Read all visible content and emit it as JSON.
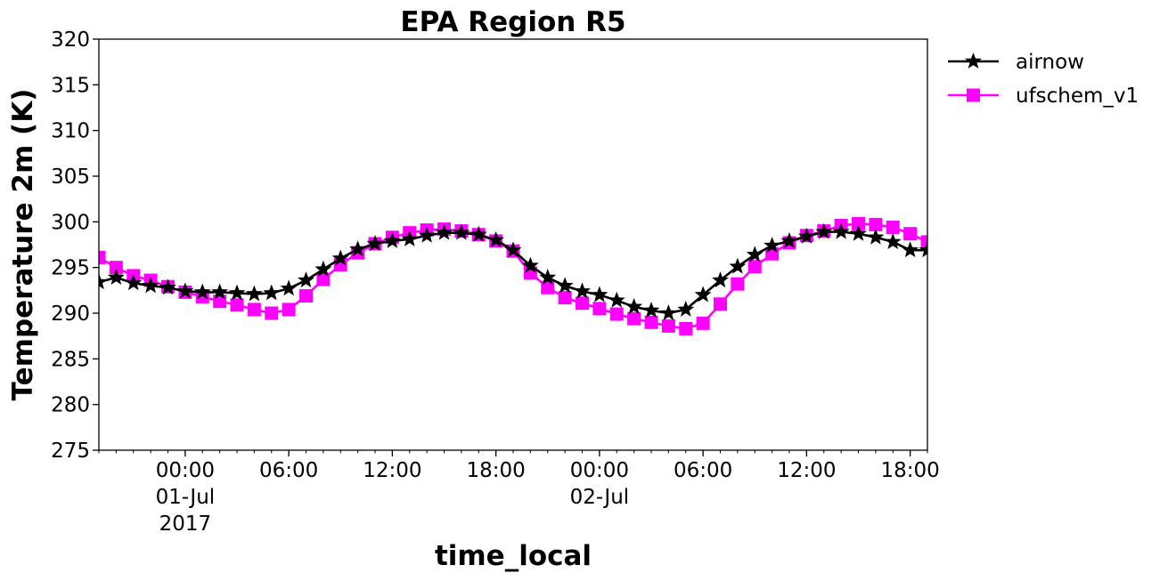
{
  "chart_data": {
    "type": "line",
    "title": "EPA Region R5",
    "xlabel": "time_local",
    "ylabel": "Temperature 2m (K)",
    "ylim": [
      275,
      320
    ],
    "xlim": [
      "2017-06-30T19:00",
      "2017-07-02T19:00"
    ],
    "yticks": [
      "275",
      "280",
      "285",
      "290",
      "295",
      "300",
      "305",
      "310",
      "315",
      "320"
    ],
    "xticks": [
      {
        "time": "2017-07-01T00:00",
        "lines": [
          "00:00",
          "01-Jul",
          "2017"
        ]
      },
      {
        "time": "2017-07-01T06:00",
        "lines": [
          "06:00"
        ]
      },
      {
        "time": "2017-07-01T12:00",
        "lines": [
          "12:00"
        ]
      },
      {
        "time": "2017-07-01T18:00",
        "lines": [
          "18:00"
        ]
      },
      {
        "time": "2017-07-02T00:00",
        "lines": [
          "00:00",
          "02-Jul"
        ]
      },
      {
        "time": "2017-07-02T06:00",
        "lines": [
          "06:00"
        ]
      },
      {
        "time": "2017-07-02T12:00",
        "lines": [
          "12:00"
        ]
      },
      {
        "time": "2017-07-02T18:00",
        "lines": [
          "18:00"
        ]
      }
    ],
    "grid": false,
    "legend_position": "outside-top-right",
    "x": [
      "2017-06-30T19:00",
      "2017-06-30T20:00",
      "2017-06-30T21:00",
      "2017-06-30T22:00",
      "2017-06-30T23:00",
      "2017-07-01T00:00",
      "2017-07-01T01:00",
      "2017-07-01T02:00",
      "2017-07-01T03:00",
      "2017-07-01T04:00",
      "2017-07-01T05:00",
      "2017-07-01T06:00",
      "2017-07-01T07:00",
      "2017-07-01T08:00",
      "2017-07-01T09:00",
      "2017-07-01T10:00",
      "2017-07-01T11:00",
      "2017-07-01T12:00",
      "2017-07-01T13:00",
      "2017-07-01T14:00",
      "2017-07-01T15:00",
      "2017-07-01T16:00",
      "2017-07-01T17:00",
      "2017-07-01T18:00",
      "2017-07-01T19:00",
      "2017-07-01T20:00",
      "2017-07-01T21:00",
      "2017-07-01T22:00",
      "2017-07-01T23:00",
      "2017-07-02T00:00",
      "2017-07-02T01:00",
      "2017-07-02T02:00",
      "2017-07-02T03:00",
      "2017-07-02T04:00",
      "2017-07-02T05:00",
      "2017-07-02T06:00",
      "2017-07-02T07:00",
      "2017-07-02T08:00",
      "2017-07-02T09:00",
      "2017-07-02T10:00",
      "2017-07-02T11:00",
      "2017-07-02T12:00",
      "2017-07-02T13:00",
      "2017-07-02T14:00",
      "2017-07-02T15:00",
      "2017-07-02T16:00",
      "2017-07-02T17:00",
      "2017-07-02T18:00",
      "2017-07-02T19:00"
    ],
    "series": [
      {
        "name": "airnow",
        "color": "#000000",
        "marker": "star",
        "values": [
          293.4,
          293.9,
          293.3,
          293.0,
          292.8,
          292.4,
          292.3,
          292.3,
          292.2,
          292.1,
          292.2,
          292.7,
          293.6,
          294.8,
          296.0,
          297.0,
          297.6,
          297.9,
          298.1,
          298.5,
          298.8,
          298.8,
          298.6,
          298.0,
          296.9,
          295.2,
          293.9,
          293.0,
          292.4,
          292.0,
          291.4,
          290.7,
          290.3,
          290.0,
          290.4,
          292.0,
          293.6,
          295.1,
          296.4,
          297.4,
          297.9,
          298.4,
          298.9,
          298.9,
          298.7,
          298.3,
          297.8,
          296.9,
          296.9
        ]
      },
      {
        "name": "ufschem_v1",
        "color": "#ff00ff",
        "marker": "square",
        "values": [
          296.1,
          295.0,
          294.1,
          293.6,
          292.9,
          292.3,
          291.8,
          291.3,
          290.9,
          290.4,
          290.0,
          290.4,
          291.9,
          293.7,
          295.3,
          296.6,
          297.6,
          298.3,
          298.8,
          299.1,
          299.2,
          299.0,
          298.6,
          297.9,
          296.8,
          294.4,
          292.8,
          291.7,
          291.1,
          290.5,
          289.9,
          289.4,
          289.0,
          288.6,
          288.3,
          288.9,
          291.0,
          293.2,
          295.1,
          296.5,
          297.7,
          298.5,
          299.0,
          299.6,
          299.8,
          299.7,
          299.4,
          298.7,
          297.8
        ]
      }
    ]
  }
}
